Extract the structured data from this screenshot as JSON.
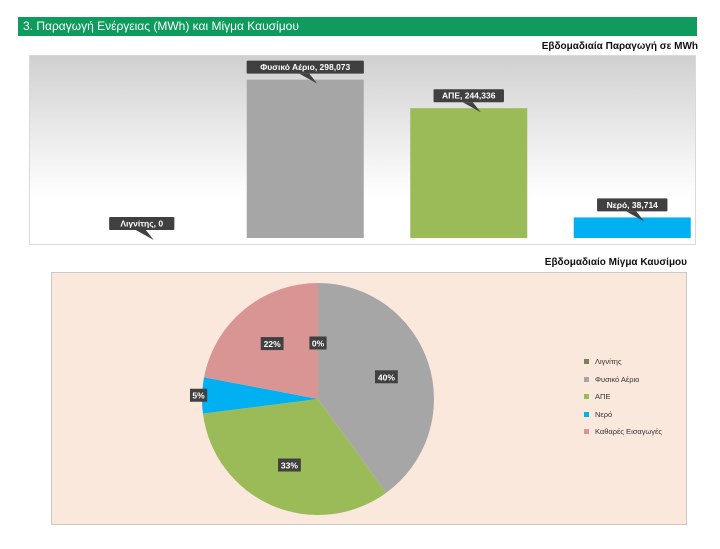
{
  "header": {
    "title": "3. Παραγωγή Ενέργειας (MWh) και Μίγμα Καυσίμου"
  },
  "chart_data": [
    {
      "type": "bar",
      "title": "Εβδομαδιαία Παραγωγή σε MWh",
      "categories": [
        "Λιγνίτης",
        "Φυσικό Αέριο",
        "ΑΠΕ",
        "Νερό"
      ],
      "values": [
        0,
        298073,
        244336,
        38714
      ],
      "data_labels": [
        "Λιγνίτης, 0",
        "Φυσικό Αέριο, 298,073",
        "ΑΠΕ, 244,336",
        "Νερό, 38,714"
      ],
      "colors": [
        "#7f7f5a",
        "#a6a6a6",
        "#9bbb59",
        "#00b0f0"
      ],
      "ylim": [
        0,
        320000
      ],
      "grid": false,
      "legend": "none"
    },
    {
      "type": "pie",
      "title": "Εβδομαδιαίο Μίγμα Καυσίμου",
      "labels": [
        "Λιγνίτης",
        "Φυσικό Αέριο",
        "ΑΠΕ",
        "Νερό",
        "Καθαρές Εισαγωγές"
      ],
      "values": [
        0,
        40,
        33,
        5,
        22
      ],
      "data_labels": [
        "0%",
        "40%",
        "33%",
        "5%",
        "22%"
      ],
      "colors": [
        "#7f7f5a",
        "#a6a6a6",
        "#9bbb59",
        "#00b0f0",
        "#d99594"
      ],
      "legend": "right"
    }
  ]
}
